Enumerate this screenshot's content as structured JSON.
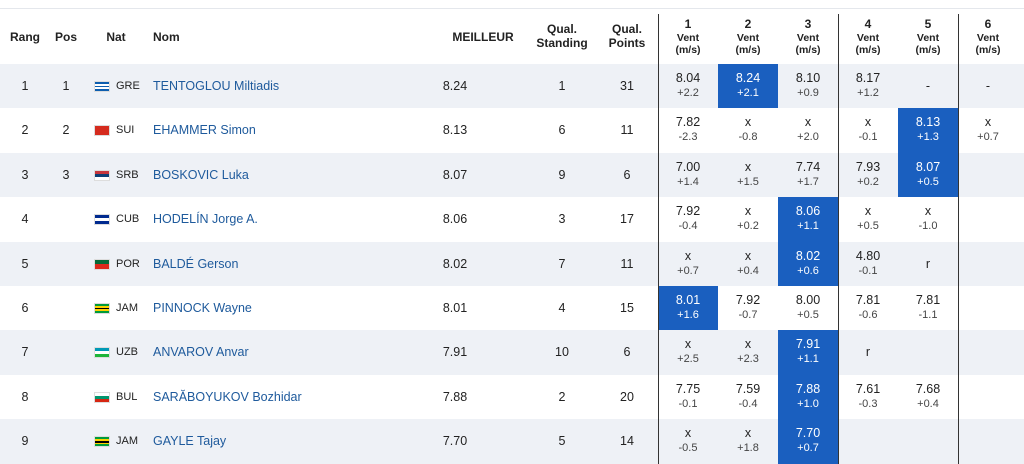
{
  "header": {
    "rang": "Rang",
    "pos": "Pos",
    "nat": "Nat",
    "nom": "Nom",
    "meilleur": "MEILLEUR",
    "standing": "Qual. Standing",
    "points": "Qual. Points",
    "attempts": [
      {
        "number": "1",
        "label": "Vent (m/s)"
      },
      {
        "number": "2",
        "label": "Vent (m/s)"
      },
      {
        "number": "3",
        "label": "Vent (m/s)"
      },
      {
        "number": "4",
        "label": "Vent (m/s)"
      },
      {
        "number": "5",
        "label": "Vent (m/s)"
      },
      {
        "number": "6",
        "label": "Vent (m/s)"
      }
    ]
  },
  "rows": [
    {
      "rang": 1,
      "pos": 1,
      "nat": "GRE",
      "flag": [
        "#0d5eaf",
        "#ffffff",
        "#0d5eaf",
        "#ffffff",
        "#0d5eaf"
      ],
      "nom": "TENTOGLOU Miltiadis",
      "meilleur": "8.24",
      "standing": 1,
      "points": 31,
      "best": 1,
      "attempts": [
        {
          "mark": "8.04",
          "wind": "+2.2"
        },
        {
          "mark": "8.24",
          "wind": "+2.1"
        },
        {
          "mark": "8.10",
          "wind": "+0.9"
        },
        {
          "mark": "8.17",
          "wind": "+1.2"
        },
        {
          "mark": "-"
        },
        {
          "mark": "-"
        }
      ]
    },
    {
      "rang": 2,
      "pos": 2,
      "nat": "SUI",
      "flag": [
        "#d52b1e"
      ],
      "nom": "EHAMMER Simon",
      "meilleur": "8.13",
      "standing": 6,
      "points": 11,
      "best": 4,
      "attempts": [
        {
          "mark": "7.82",
          "wind": "-2.3"
        },
        {
          "mark": "x",
          "wind": "-0.8"
        },
        {
          "mark": "x",
          "wind": "+2.0"
        },
        {
          "mark": "x",
          "wind": "-0.1"
        },
        {
          "mark": "8.13",
          "wind": "+1.3"
        },
        {
          "mark": "x",
          "wind": "+0.7"
        }
      ]
    },
    {
      "rang": 3,
      "pos": 3,
      "nat": "SRB",
      "flag": [
        "#c6363c",
        "#0c4076",
        "#ffffff"
      ],
      "nom": "BOSKOVIC Luka",
      "meilleur": "8.07",
      "standing": 9,
      "points": 6,
      "best": 4,
      "attempts": [
        {
          "mark": "7.00",
          "wind": "+1.4"
        },
        {
          "mark": "x",
          "wind": "+1.5"
        },
        {
          "mark": "7.74",
          "wind": "+1.7"
        },
        {
          "mark": "7.93",
          "wind": "+0.2"
        },
        {
          "mark": "8.07",
          "wind": "+0.5"
        },
        null
      ]
    },
    {
      "rang": 4,
      "nat": "CUB",
      "flag": [
        "#002a8f",
        "#ffffff",
        "#002a8f"
      ],
      "nom": "HODELÍN Jorge A.",
      "meilleur": "8.06",
      "standing": 3,
      "points": 17,
      "best": 2,
      "attempts": [
        {
          "mark": "7.92",
          "wind": "-0.4"
        },
        {
          "mark": "x",
          "wind": "+0.2"
        },
        {
          "mark": "8.06",
          "wind": "+1.1"
        },
        {
          "mark": "x",
          "wind": "+0.5"
        },
        {
          "mark": "x",
          "wind": "-1.0"
        },
        null
      ]
    },
    {
      "rang": 5,
      "nat": "POR",
      "flag": [
        "#046a38",
        "#da291c"
      ],
      "nom": "BALDÉ Gerson",
      "meilleur": "8.02",
      "standing": 7,
      "points": 11,
      "best": 2,
      "attempts": [
        {
          "mark": "x",
          "wind": "+0.7"
        },
        {
          "mark": "x",
          "wind": "+0.4"
        },
        {
          "mark": "8.02",
          "wind": "+0.6"
        },
        {
          "mark": "4.80",
          "wind": "-0.1"
        },
        {
          "mark": "r"
        },
        null
      ]
    },
    {
      "rang": 6,
      "nat": "JAM",
      "flag": [
        "#009b3a",
        "#fed100",
        "#000000",
        "#fed100",
        "#009b3a"
      ],
      "nom": "PINNOCK Wayne",
      "meilleur": "8.01",
      "standing": 4,
      "points": 15,
      "best": 0,
      "attempts": [
        {
          "mark": "8.01",
          "wind": "+1.6"
        },
        {
          "mark": "7.92",
          "wind": "-0.7"
        },
        {
          "mark": "8.00",
          "wind": "+0.5"
        },
        {
          "mark": "7.81",
          "wind": "-0.6"
        },
        {
          "mark": "7.81",
          "wind": "-1.1"
        },
        null
      ]
    },
    {
      "rang": 7,
      "nat": "UZB",
      "flag": [
        "#0099b5",
        "#ffffff",
        "#1eb53a"
      ],
      "nom": "ANVAROV Anvar",
      "meilleur": "7.91",
      "standing": 10,
      "points": 6,
      "best": 2,
      "attempts": [
        {
          "mark": "x",
          "wind": "+2.5"
        },
        {
          "mark": "x",
          "wind": "+2.3"
        },
        {
          "mark": "7.91",
          "wind": "+1.1"
        },
        {
          "mark": "r"
        },
        null,
        null
      ]
    },
    {
      "rang": 8,
      "nat": "BUL",
      "flag": [
        "#ffffff",
        "#00966e",
        "#d62612"
      ],
      "nom": "SARĂBOYUKOV Bozhidar",
      "meilleur": "7.88",
      "standing": 2,
      "points": 20,
      "best": 2,
      "attempts": [
        {
          "mark": "7.75",
          "wind": "-0.1"
        },
        {
          "mark": "7.59",
          "wind": "-0.4"
        },
        {
          "mark": "7.88",
          "wind": "+1.0"
        },
        {
          "mark": "7.61",
          "wind": "-0.3"
        },
        {
          "mark": "7.68",
          "wind": "+0.4"
        },
        null
      ]
    },
    {
      "rang": 9,
      "nat": "JAM",
      "flag": [
        "#009b3a",
        "#fed100",
        "#000000",
        "#fed100",
        "#009b3a"
      ],
      "nom": "GAYLE Tajay",
      "meilleur": "7.70",
      "standing": 5,
      "points": 14,
      "best": 2,
      "attempts": [
        {
          "mark": "x",
          "wind": "-0.5"
        },
        {
          "mark": "x",
          "wind": "+1.8"
        },
        {
          "mark": "7.70",
          "wind": "+0.7"
        },
        null,
        null,
        null
      ]
    }
  ]
}
